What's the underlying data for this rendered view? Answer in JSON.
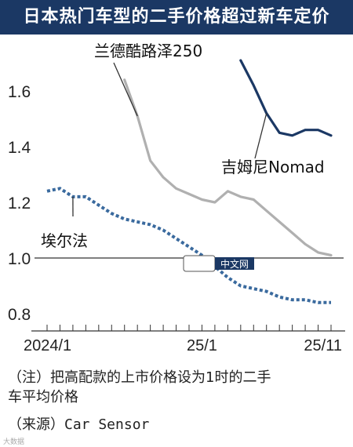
{
  "chart_data": {
    "type": "line",
    "title": "日本热门车型的二手价格超过新车定价",
    "x": [
      "2024/1",
      "2024/2",
      "2024/3",
      "2024/4",
      "2024/5",
      "2024/6",
      "2024/7",
      "2024/8",
      "2024/9",
      "2024/10",
      "2024/11",
      "2024/12",
      "2025/1",
      "2025/2",
      "2025/3",
      "2025/4",
      "2025/5",
      "2025/6",
      "2025/7",
      "2025/8",
      "2025/9",
      "2025/10",
      "2025/11"
    ],
    "x_ticks": [
      "2024/1",
      "25/1",
      "25/11"
    ],
    "ylim": [
      0.75,
      1.75
    ],
    "y_ticks": [
      "0.8",
      "1.0",
      "1.2",
      "1.4",
      "1.6"
    ],
    "reference_line": 1.0,
    "grid": false,
    "series": [
      {
        "name": "兰德酷路泽250",
        "color": "#b0b0b0",
        "style": "solid",
        "values": [
          null,
          null,
          null,
          null,
          null,
          null,
          1.64,
          1.51,
          1.35,
          1.29,
          1.25,
          1.23,
          1.21,
          1.2,
          1.24,
          1.22,
          1.21,
          1.17,
          1.13,
          1.09,
          1.05,
          1.02,
          1.01
        ]
      },
      {
        "name": "吉姆尼Nomad",
        "color": "#1b3864",
        "style": "solid",
        "values": [
          null,
          null,
          null,
          null,
          null,
          null,
          null,
          null,
          null,
          null,
          null,
          null,
          null,
          null,
          null,
          1.71,
          1.62,
          1.52,
          1.45,
          1.44,
          1.46,
          1.46,
          1.44
        ]
      },
      {
        "name": "埃尔法",
        "color": "#3a6a9e",
        "style": "dotted",
        "values": [
          1.24,
          1.25,
          1.22,
          1.22,
          1.19,
          1.16,
          1.14,
          1.13,
          1.12,
          1.1,
          1.07,
          1.04,
          1.01,
          0.97,
          0.93,
          0.9,
          0.89,
          0.88,
          0.86,
          0.85,
          0.85,
          0.84,
          0.84
        ]
      }
    ]
  },
  "note": {
    "line1": "（注）把高配款的上市价格设为1时的二手",
    "line2": "车平均价格"
  },
  "source": {
    "label": "（来源）",
    "value": "Car Sensor"
  },
  "watermark": {
    "center": "中文网",
    "bottom": "大数据"
  }
}
